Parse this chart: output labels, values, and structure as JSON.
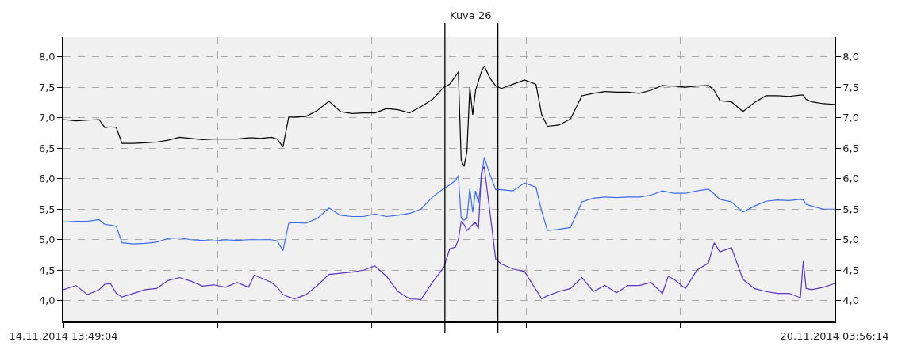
{
  "chart_data": {
    "type": "line",
    "x": [
      "2014-11-14T13:49:04",
      "2014-11-14T16:00",
      "2014-11-14T18:00",
      "2014-11-14T20:00",
      "2014-11-14T21:00",
      "2014-11-14T22:00",
      "2014-11-14T23:00",
      "2014-11-15T00:00",
      "2014-11-15T02:00",
      "2014-11-15T04:00",
      "2014-11-15T06:00",
      "2014-11-15T08:00",
      "2014-11-15T10:00",
      "2014-11-15T12:00",
      "2014-11-15T14:00",
      "2014-11-15T16:00",
      "2014-11-15T18:00",
      "2014-11-15T20:00",
      "2014-11-15T22:00",
      "2014-11-15T23:00",
      "2014-11-16T00:00",
      "2014-11-16T02:00",
      "2014-11-16T03:00",
      "2014-11-16T04:00",
      "2014-11-16T05:00",
      "2014-11-16T06:00",
      "2014-11-16T08:00",
      "2014-11-16T10:00",
      "2014-11-16T12:00",
      "2014-11-16T14:00",
      "2014-11-16T16:00",
      "2014-11-16T18:00",
      "2014-11-16T20:00",
      "2014-11-16T22:00",
      "2014-11-17T00:00",
      "2014-11-17T02:00",
      "2014-11-17T04:00",
      "2014-11-17T06:00",
      "2014-11-17T08:00",
      "2014-11-17T09:00",
      "2014-11-17T10:00",
      "2014-11-17T10:30",
      "2014-11-17T11:00",
      "2014-11-17T11:30",
      "2014-11-17T12:00",
      "2014-11-17T12:30",
      "2014-11-17T13:00",
      "2014-11-17T13:30",
      "2014-11-17T14:00",
      "2014-11-17T14:30",
      "2014-11-17T15:00",
      "2014-11-17T16:00",
      "2014-11-17T17:00",
      "2014-11-17T18:00",
      "2014-11-17T20:00",
      "2014-11-17T22:00",
      "2014-11-18T00:00",
      "2014-11-18T01:00",
      "2014-11-18T02:00",
      "2014-11-18T04:00",
      "2014-11-18T06:00",
      "2014-11-18T08:00",
      "2014-11-18T10:00",
      "2014-11-18T12:00",
      "2014-11-18T14:00",
      "2014-11-18T16:00",
      "2014-11-18T18:00",
      "2014-11-18T20:00",
      "2014-11-18T22:00",
      "2014-11-18T23:00",
      "2014-11-19T00:00",
      "2014-11-19T02:00",
      "2014-11-19T04:00",
      "2014-11-19T06:00",
      "2014-11-19T07:00",
      "2014-11-19T08:00",
      "2014-11-19T10:00",
      "2014-11-19T12:00",
      "2014-11-19T14:00",
      "2014-11-19T16:00",
      "2014-11-19T18:00",
      "2014-11-19T20:00",
      "2014-11-19T22:00",
      "2014-11-19T22:30",
      "2014-11-19T23:00",
      "2014-11-20T00:00",
      "2014-11-20T02:00",
      "2014-11-20T03:56:14"
    ],
    "series": [
      {
        "color": "#000000",
        "values": [
          6.97,
          6.95,
          6.96,
          6.97,
          6.84,
          6.85,
          6.84,
          6.58,
          6.58,
          6.59,
          6.6,
          6.63,
          6.68,
          6.66,
          6.64,
          6.65,
          6.65,
          6.65,
          6.67,
          6.67,
          6.66,
          6.68,
          6.65,
          6.52,
          7.01,
          7.01,
          7.02,
          7.12,
          7.27,
          7.1,
          7.07,
          7.08,
          7.08,
          7.15,
          7.13,
          7.08,
          7.18,
          7.3,
          7.5,
          7.55,
          7.68,
          7.75,
          6.3,
          6.2,
          6.45,
          7.5,
          7.05,
          7.45,
          7.6,
          7.75,
          7.85,
          7.65,
          7.52,
          7.48,
          7.55,
          7.62,
          7.55,
          7.05,
          6.86,
          6.88,
          6.98,
          7.36,
          7.4,
          7.43,
          7.42,
          7.42,
          7.4,
          7.45,
          7.53,
          7.52,
          7.52,
          7.5,
          7.52,
          7.53,
          7.45,
          7.28,
          7.26,
          7.1,
          7.25,
          7.36,
          7.36,
          7.35,
          7.37,
          7.37,
          7.3,
          7.26,
          7.23,
          7.22
        ]
      },
      {
        "color": "#3b6cf0",
        "values": [
          5.29,
          5.3,
          5.3,
          5.33,
          5.25,
          5.24,
          5.22,
          4.95,
          4.93,
          4.94,
          4.96,
          5.02,
          5.03,
          5.0,
          4.99,
          4.98,
          5.0,
          4.99,
          5.0,
          5.0,
          5.0,
          5.0,
          4.98,
          4.82,
          5.27,
          5.28,
          5.27,
          5.35,
          5.52,
          5.4,
          5.38,
          5.38,
          5.42,
          5.38,
          5.4,
          5.43,
          5.5,
          5.7,
          5.84,
          5.9,
          5.97,
          6.05,
          5.35,
          5.32,
          5.35,
          5.84,
          5.45,
          5.8,
          5.6,
          6.0,
          6.35,
          6.07,
          5.82,
          5.82,
          5.8,
          5.93,
          5.86,
          5.47,
          5.15,
          5.17,
          5.2,
          5.62,
          5.68,
          5.7,
          5.69,
          5.7,
          5.7,
          5.73,
          5.8,
          5.78,
          5.76,
          5.76,
          5.8,
          5.83,
          5.75,
          5.66,
          5.62,
          5.45,
          5.55,
          5.63,
          5.65,
          5.64,
          5.66,
          5.65,
          5.58,
          5.55,
          5.5,
          5.5
        ]
      },
      {
        "color": "#5b36c4",
        "values": [
          4.18,
          4.25,
          4.1,
          4.18,
          4.27,
          4.28,
          4.12,
          4.06,
          4.12,
          4.18,
          4.2,
          4.33,
          4.38,
          4.32,
          4.24,
          4.26,
          4.22,
          4.3,
          4.22,
          4.42,
          4.38,
          4.3,
          4.22,
          4.1,
          4.06,
          4.03,
          4.1,
          4.25,
          4.43,
          4.45,
          4.47,
          4.5,
          4.57,
          4.4,
          4.15,
          4.03,
          4.02,
          4.3,
          4.55,
          4.85,
          4.88,
          5.0,
          5.3,
          5.25,
          5.15,
          5.2,
          5.25,
          5.28,
          5.18,
          6.1,
          6.2,
          5.45,
          4.68,
          4.6,
          4.52,
          4.48,
          4.18,
          4.03,
          4.08,
          4.15,
          4.2,
          4.38,
          4.15,
          4.25,
          4.13,
          4.25,
          4.25,
          4.3,
          4.12,
          4.4,
          4.35,
          4.2,
          4.5,
          4.62,
          4.95,
          4.8,
          4.87,
          4.35,
          4.2,
          4.15,
          4.12,
          4.12,
          4.05,
          4.65,
          4.2,
          4.18,
          4.22,
          4.28
        ]
      }
    ],
    "xlim": [
      "2014-11-14T13:49:04",
      "2014-11-20T03:56:14"
    ],
    "xticks": [
      {
        "value": "2014-11-14T13:49:04",
        "label": "14.11.2014 13:49:04"
      },
      {
        "value": "2014-11-15T16:38:30",
        "label": null
      },
      {
        "value": "2014-11-16T19:27:56",
        "label": null
      },
      {
        "value": "2014-11-17T22:17:22",
        "label": null
      },
      {
        "value": "2014-11-19T01:06:48",
        "label": null
      },
      {
        "value": "2014-11-20T03:56:14",
        "label": "20.11.2014 03:56:14"
      }
    ],
    "ylim": [
      3.66,
      8.32
    ],
    "yticks": [
      {
        "value": 4,
        "label": "4,0"
      },
      {
        "value": 4.5,
        "label": "4,5"
      },
      {
        "value": 5,
        "label": "5,0"
      },
      {
        "value": 5.5,
        "label": "5,5"
      },
      {
        "value": 6,
        "label": "6,0"
      },
      {
        "value": 6.5,
        "label": "6,5"
      },
      {
        "value": 7,
        "label": "7,0"
      },
      {
        "value": 7.5,
        "label": "7,5"
      },
      {
        "value": 8,
        "label": "8,0"
      }
    ],
    "y2lim": [
      3.66,
      8.32
    ],
    "y2ticks": [
      {
        "value": 4,
        "label": "4,0"
      },
      {
        "value": 4.5,
        "label": "4,5"
      },
      {
        "value": 5,
        "label": "5,0"
      },
      {
        "value": 5.5,
        "label": "5,5"
      },
      {
        "value": 6,
        "label": "6,0"
      },
      {
        "value": 6.5,
        "label": "6,5"
      },
      {
        "value": 7,
        "label": "7,0"
      },
      {
        "value": 7.5,
        "label": "7,5"
      },
      {
        "value": 8,
        "label": "8,0"
      }
    ],
    "ref_lines": [
      {
        "axis": "x",
        "value": "2014-11-17T08:09:54",
        "color": "#000000"
      },
      {
        "axis": "x",
        "value": "2014-11-17T17:22:54",
        "color": "#000000"
      }
    ],
    "annotations": [
      "Kuva 26"
    ],
    "grid": true,
    "marker": "none",
    "line_style": "solid"
  }
}
